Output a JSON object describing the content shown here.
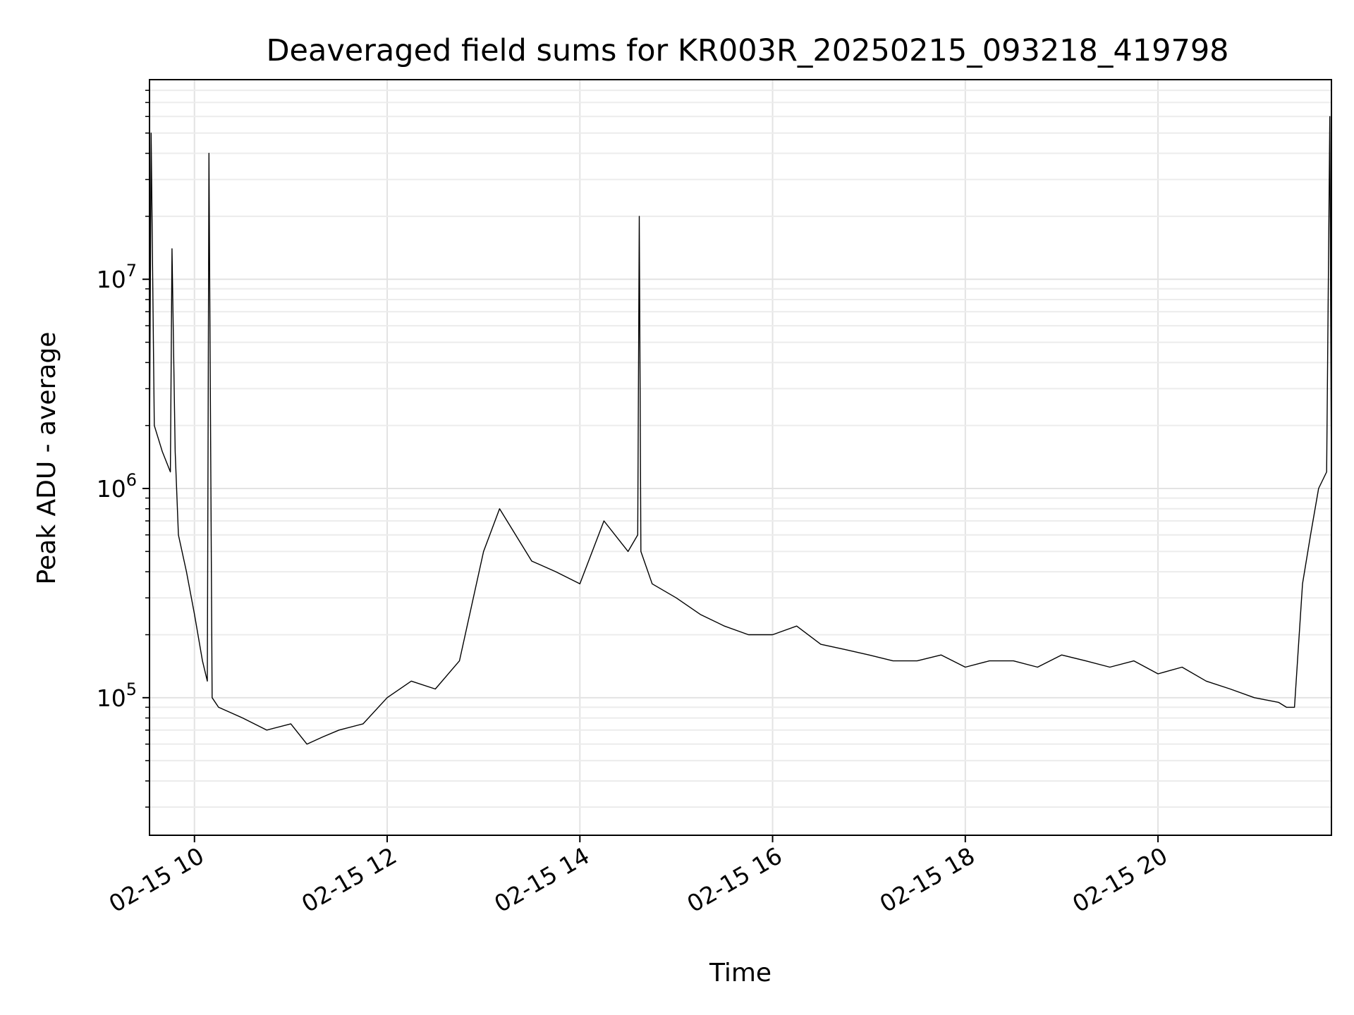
{
  "chart_data": {
    "type": "line",
    "title": "Deaveraged field sums for KR003R_20250215_093218_419798",
    "xlabel": "Time",
    "ylabel": "Peak ADU - average",
    "yscale": "log",
    "ylim": [
      22000,
      90000000
    ],
    "xlim": [
      "2025-02-15 09:32",
      "2025-02-15 21:48"
    ],
    "grid": true,
    "line_color": "#000000",
    "x_ticks": [
      {
        "label": "02-15 10",
        "x": "2025-02-15 10:00"
      },
      {
        "label": "02-15 12",
        "x": "2025-02-15 12:00"
      },
      {
        "label": "02-15 14",
        "x": "2025-02-15 14:00"
      },
      {
        "label": "02-15 16",
        "x": "2025-02-15 16:00"
      },
      {
        "label": "02-15 18",
        "x": "2025-02-15 18:00"
      },
      {
        "label": "02-15 20",
        "x": "2025-02-15 20:00"
      }
    ],
    "y_ticks": [
      {
        "base": "10",
        "exp": "5",
        "value": 100000
      },
      {
        "base": "10",
        "exp": "6",
        "value": 1000000
      },
      {
        "base": "10",
        "exp": "7",
        "value": 10000000
      }
    ],
    "series": [
      {
        "x": [
          "2025-02-15 09:32",
          "2025-02-15 09:33",
          "2025-02-15 09:35",
          "2025-02-15 09:40",
          "2025-02-15 09:45",
          "2025-02-15 09:46",
          "2025-02-15 09:48",
          "2025-02-15 09:50",
          "2025-02-15 09:55",
          "2025-02-15 10:00",
          "2025-02-15 10:05",
          "2025-02-15 10:08",
          "2025-02-15 10:09",
          "2025-02-15 10:11",
          "2025-02-15 10:15",
          "2025-02-15 10:30",
          "2025-02-15 10:45",
          "2025-02-15 11:00",
          "2025-02-15 11:10",
          "2025-02-15 11:20",
          "2025-02-15 11:30",
          "2025-02-15 11:45",
          "2025-02-15 12:00",
          "2025-02-15 12:15",
          "2025-02-15 12:30",
          "2025-02-15 12:45",
          "2025-02-15 13:00",
          "2025-02-15 13:10",
          "2025-02-15 13:20",
          "2025-02-15 13:30",
          "2025-02-15 13:45",
          "2025-02-15 14:00",
          "2025-02-15 14:15",
          "2025-02-15 14:30",
          "2025-02-15 14:36",
          "2025-02-15 14:37",
          "2025-02-15 14:38",
          "2025-02-15 14:45",
          "2025-02-15 15:00",
          "2025-02-15 15:15",
          "2025-02-15 15:30",
          "2025-02-15 15:45",
          "2025-02-15 16:00",
          "2025-02-15 16:15",
          "2025-02-15 16:30",
          "2025-02-15 16:45",
          "2025-02-15 17:00",
          "2025-02-15 17:15",
          "2025-02-15 17:30",
          "2025-02-15 17:45",
          "2025-02-15 18:00",
          "2025-02-15 18:15",
          "2025-02-15 18:30",
          "2025-02-15 18:45",
          "2025-02-15 19:00",
          "2025-02-15 19:15",
          "2025-02-15 19:30",
          "2025-02-15 19:45",
          "2025-02-15 20:00",
          "2025-02-15 20:15",
          "2025-02-15 20:30",
          "2025-02-15 20:45",
          "2025-02-15 21:00",
          "2025-02-15 21:15",
          "2025-02-15 21:20",
          "2025-02-15 21:25",
          "2025-02-15 21:30",
          "2025-02-15 21:35",
          "2025-02-15 21:40",
          "2025-02-15 21:45",
          "2025-02-15 21:47",
          "2025-02-15 21:48"
        ],
        "y": [
          1500000,
          50000000,
          2000000,
          1500000,
          1200000,
          14000000,
          1500000,
          600000,
          400000,
          250000,
          150000,
          120000,
          40000000,
          100000,
          90000,
          80000,
          70000,
          75000,
          60000,
          65000,
          70000,
          75000,
          100000,
          120000,
          110000,
          150000,
          500000,
          800000,
          600000,
          450000,
          400000,
          350000,
          700000,
          500000,
          600000,
          20000000,
          500000,
          350000,
          300000,
          250000,
          220000,
          200000,
          200000,
          220000,
          180000,
          170000,
          160000,
          150000,
          150000,
          160000,
          140000,
          150000,
          150000,
          140000,
          160000,
          150000,
          140000,
          150000,
          130000,
          140000,
          120000,
          110000,
          100000,
          95000,
          90000,
          90000,
          350000,
          600000,
          1000000,
          1200000,
          60000000,
          1000000
        ]
      }
    ]
  }
}
